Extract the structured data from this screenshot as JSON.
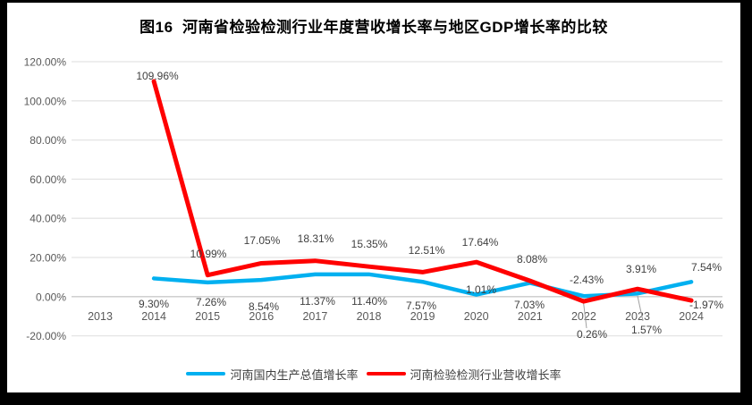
{
  "chart_data": {
    "type": "line",
    "title": "图16  河南省检验检测行业年度营收增长率与地区GDP增长率的比较",
    "categories": [
      "2013",
      "2014",
      "2015",
      "2016",
      "2017",
      "2018",
      "2019",
      "2020",
      "2021",
      "2022",
      "2023",
      "2024"
    ],
    "series": [
      {
        "name": "河南国内生产总值增长率",
        "color": "#00B0F0",
        "values": [
          null,
          9.3,
          7.26,
          8.54,
          11.37,
          11.4,
          7.57,
          1.01,
          7.03,
          0.26,
          1.57,
          7.54
        ]
      },
      {
        "name": "河南检验检测行业营收增长率",
        "color": "#FF0000",
        "values": [
          null,
          109.96,
          10.99,
          17.05,
          18.31,
          15.35,
          12.51,
          17.64,
          8.08,
          -2.43,
          3.91,
          -1.97
        ]
      }
    ],
    "y_axis": {
      "tick_labels": [
        "120.00%",
        "100.00%",
        "80.00%",
        "60.00%",
        "40.00%",
        "20.00%",
        "0.00%",
        "-20.00%"
      ],
      "tick_values": [
        120,
        100,
        80,
        60,
        40,
        20,
        0,
        -20
      ],
      "min": -20,
      "max": 120
    },
    "xlabel": "",
    "ylabel": "",
    "grid": true,
    "data_labels": "all points, two decimals with % sign",
    "legend_position": "bottom",
    "colors": {
      "grid": "#E4E4E4",
      "zero_axis_line": "#C9C9C9",
      "axis_text": "#595959",
      "data_label_text": "#3F3F3F",
      "leader_line": "#A0A0A0",
      "frame": "#000000",
      "plot_background": "#FFFFFF"
    }
  }
}
